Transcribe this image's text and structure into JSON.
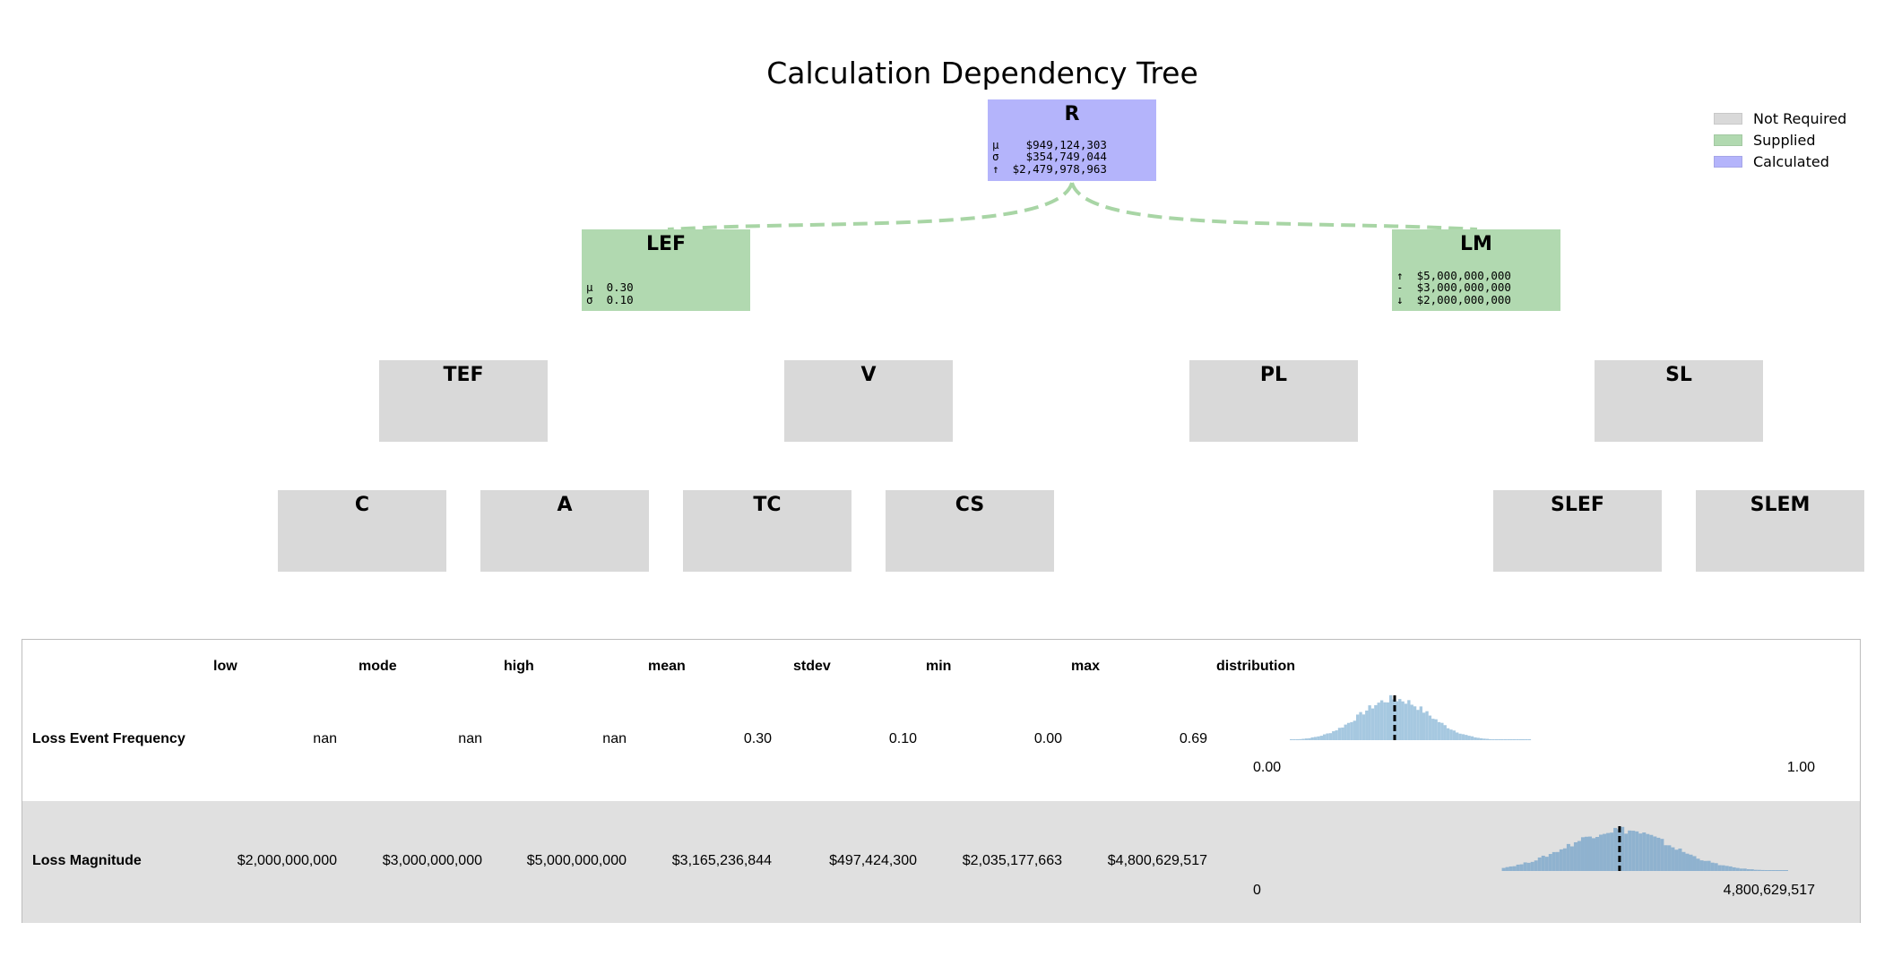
{
  "title": "Calculation Dependency Tree",
  "legend": [
    {
      "label": "Not Required",
      "color": "#d9d9d9"
    },
    {
      "label": "Supplied",
      "color": "#b1d9b0"
    },
    {
      "label": "Calculated",
      "color": "#b4b4fb"
    }
  ],
  "nodes": {
    "R": {
      "label": "R",
      "status": "Calculated",
      "stats": [
        "μ    $949,124,303",
        "σ    $354,749,044",
        "↑  $2,479,978,963"
      ]
    },
    "LEF": {
      "label": "LEF",
      "status": "Supplied",
      "stats": [
        "μ  0.30",
        "σ  0.10"
      ]
    },
    "LM": {
      "label": "LM",
      "status": "Supplied",
      "stats": [
        "↑  $5,000,000,000",
        "-  $3,000,000,000",
        "↓  $2,000,000,000"
      ]
    },
    "TEF": {
      "label": "TEF",
      "status": "Not Required"
    },
    "V": {
      "label": "V",
      "status": "Not Required"
    },
    "PL": {
      "label": "PL",
      "status": "Not Required"
    },
    "SL": {
      "label": "SL",
      "status": "Not Required"
    },
    "C": {
      "label": "C",
      "status": "Not Required"
    },
    "A": {
      "label": "A",
      "status": "Not Required"
    },
    "TC": {
      "label": "TC",
      "status": "Not Required"
    },
    "CS": {
      "label": "CS",
      "status": "Not Required"
    },
    "SLEF": {
      "label": "SLEF",
      "status": "Not Required"
    },
    "SLEM": {
      "label": "SLEM",
      "status": "Not Required"
    }
  },
  "table": {
    "columns": [
      "low",
      "mode",
      "high",
      "mean",
      "stdev",
      "min",
      "max",
      "distribution"
    ],
    "rows": [
      {
        "name": "Loss Event Frequency",
        "low": "nan",
        "mode": "nan",
        "high": "nan",
        "mean": "0.30",
        "stdev": "0.10",
        "min": "0.00",
        "max": "0.69",
        "axis_min": "0.00",
        "axis_max": "1.00"
      },
      {
        "name": "Loss Magnitude",
        "low": "$2,000,000,000",
        "mode": "$3,000,000,000",
        "high": "$5,000,000,000",
        "mean": "$3,165,236,844",
        "stdev": "$497,424,300",
        "min": "$2,035,177,663",
        "max": "$4,800,629,517",
        "axis_min": "0",
        "axis_max": "4,800,629,517"
      }
    ]
  },
  "chart_data": [
    {
      "type": "histogram",
      "title": "",
      "series_name": "Loss Event Frequency",
      "xlim": [
        0,
        1
      ],
      "mean": 0.3,
      "stdev": 0.1,
      "min": 0.0,
      "max": 0.69,
      "color": "#a6c8e0"
    },
    {
      "type": "histogram",
      "title": "",
      "series_name": "Loss Magnitude",
      "xlim": [
        0,
        4800629517
      ],
      "mean": 3165236844,
      "stdev": 497424300,
      "min": 2035177663,
      "max": 4800629517,
      "color": "#8fb2cf"
    }
  ],
  "colors": {
    "edge": "#a8d5a5",
    "not_required": "#d9d9d9",
    "supplied": "#b1d9b0",
    "calculated": "#b4b4fb"
  }
}
